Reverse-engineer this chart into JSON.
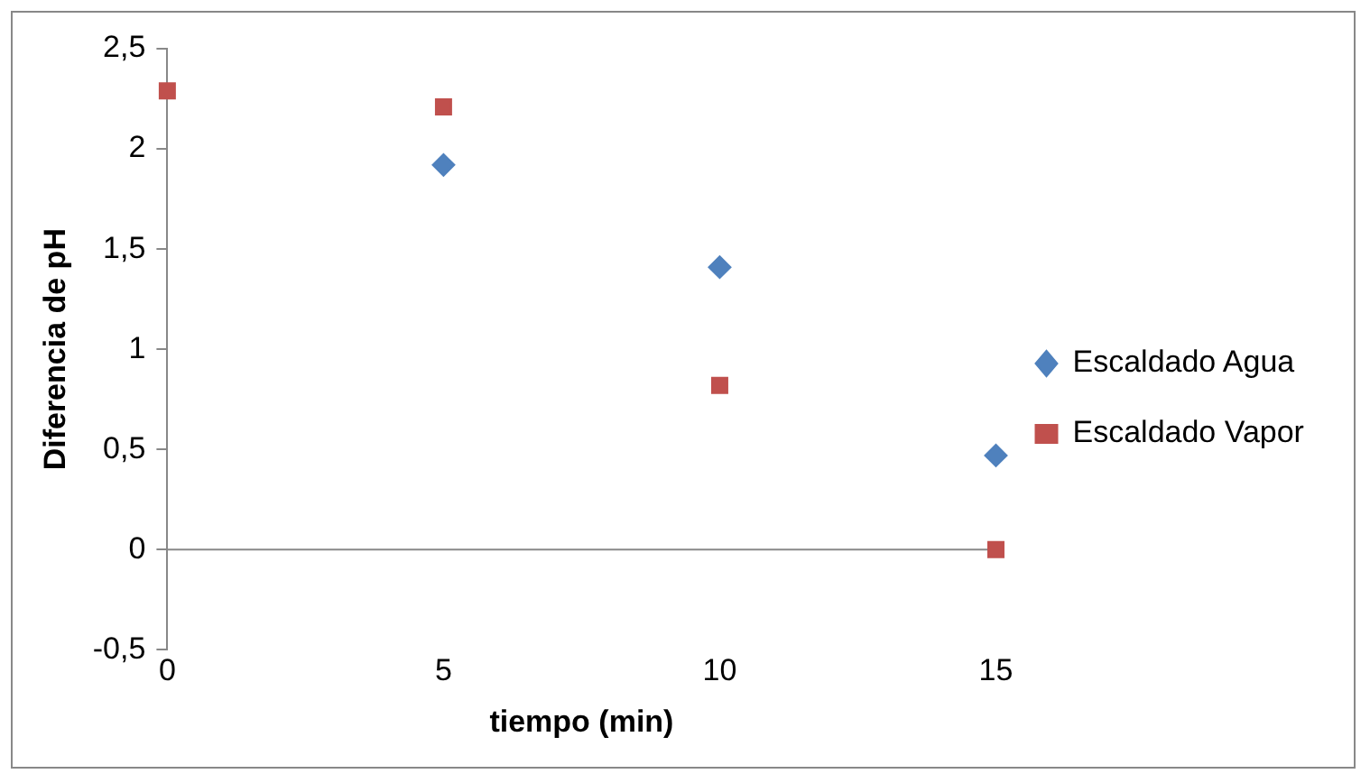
{
  "chart_data": {
    "type": "scatter",
    "xlabel": "tiempo (min)",
    "ylabel": "Diferencia de pH",
    "x": [
      0,
      5,
      10,
      15
    ],
    "series": [
      {
        "name": "Escaldado Agua",
        "color": "#4f81bd",
        "marker": "diamond",
        "values": [
          null,
          1.92,
          1.41,
          0.47
        ]
      },
      {
        "name": "Escaldado Vapor",
        "color": "#c0504d",
        "marker": "square",
        "values": [
          2.29,
          2.21,
          0.82,
          0
        ]
      }
    ],
    "xlim": [
      0,
      15
    ],
    "xticks": [
      0,
      5,
      10,
      15
    ],
    "ylim": [
      -0.5,
      2.5
    ],
    "yticks": [
      {
        "value": -0.5,
        "label": "-0,5"
      },
      0,
      {
        "value": 0.5,
        "label": "0,5"
      },
      1,
      {
        "value": 1.5,
        "label": "1,5"
      },
      2,
      {
        "value": 2.5,
        "label": "2,5"
      }
    ],
    "ref_lines": [
      {
        "axis": "y",
        "value": 0,
        "color": "#888888"
      }
    ],
    "grid": false,
    "legend": "right"
  }
}
